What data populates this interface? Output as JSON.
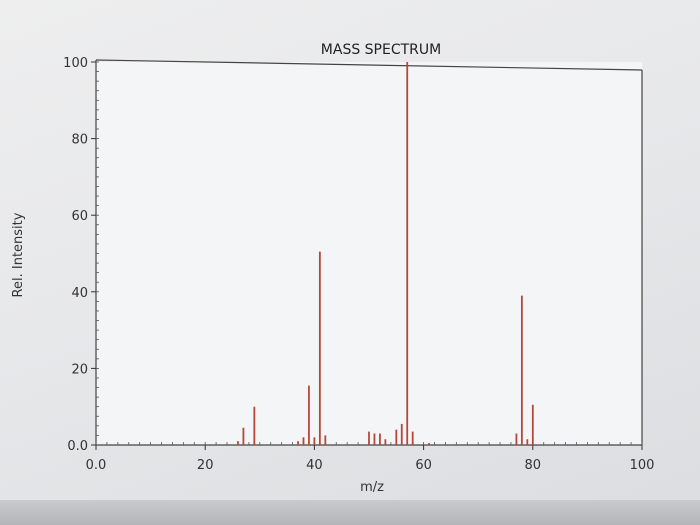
{
  "chart_data": {
    "type": "bar",
    "title": "MASS SPECTRUM",
    "xlabel": "m/z",
    "ylabel": "Rel. Intensity",
    "xlim": [
      0,
      100
    ],
    "ylim": [
      0,
      100
    ],
    "xticks": [
      {
        "value": 0,
        "label": "0.0"
      },
      {
        "value": 20,
        "label": "20"
      },
      {
        "value": 40,
        "label": "40"
      },
      {
        "value": 60,
        "label": "60"
      },
      {
        "value": 80,
        "label": "80"
      },
      {
        "value": 100,
        "label": "100"
      }
    ],
    "yticks": [
      {
        "value": 0,
        "label": "0.0"
      },
      {
        "value": 20,
        "label": "20"
      },
      {
        "value": 40,
        "label": "40"
      },
      {
        "value": 60,
        "label": "60"
      },
      {
        "value": 80,
        "label": "80"
      },
      {
        "value": 100,
        "label": "100"
      }
    ],
    "peaks": [
      {
        "mz": 26,
        "intensity": 1
      },
      {
        "mz": 27,
        "intensity": 4.5
      },
      {
        "mz": 29,
        "intensity": 10
      },
      {
        "mz": 37,
        "intensity": 1
      },
      {
        "mz": 38,
        "intensity": 2
      },
      {
        "mz": 39,
        "intensity": 15.5
      },
      {
        "mz": 40,
        "intensity": 2
      },
      {
        "mz": 41,
        "intensity": 50.5
      },
      {
        "mz": 42,
        "intensity": 2.5
      },
      {
        "mz": 50,
        "intensity": 3.5
      },
      {
        "mz": 51,
        "intensity": 3
      },
      {
        "mz": 52,
        "intensity": 3
      },
      {
        "mz": 53,
        "intensity": 1.5
      },
      {
        "mz": 55,
        "intensity": 4
      },
      {
        "mz": 56,
        "intensity": 5.5
      },
      {
        "mz": 57,
        "intensity": 100
      },
      {
        "mz": 58,
        "intensity": 3.5
      },
      {
        "mz": 61,
        "intensity": 0.5
      },
      {
        "mz": 77,
        "intensity": 3
      },
      {
        "mz": 78,
        "intensity": 39
      },
      {
        "mz": 79,
        "intensity": 1.5
      },
      {
        "mz": 80,
        "intensity": 10.5
      }
    ],
    "grid": false,
    "bar_color": "#b5473a"
  }
}
